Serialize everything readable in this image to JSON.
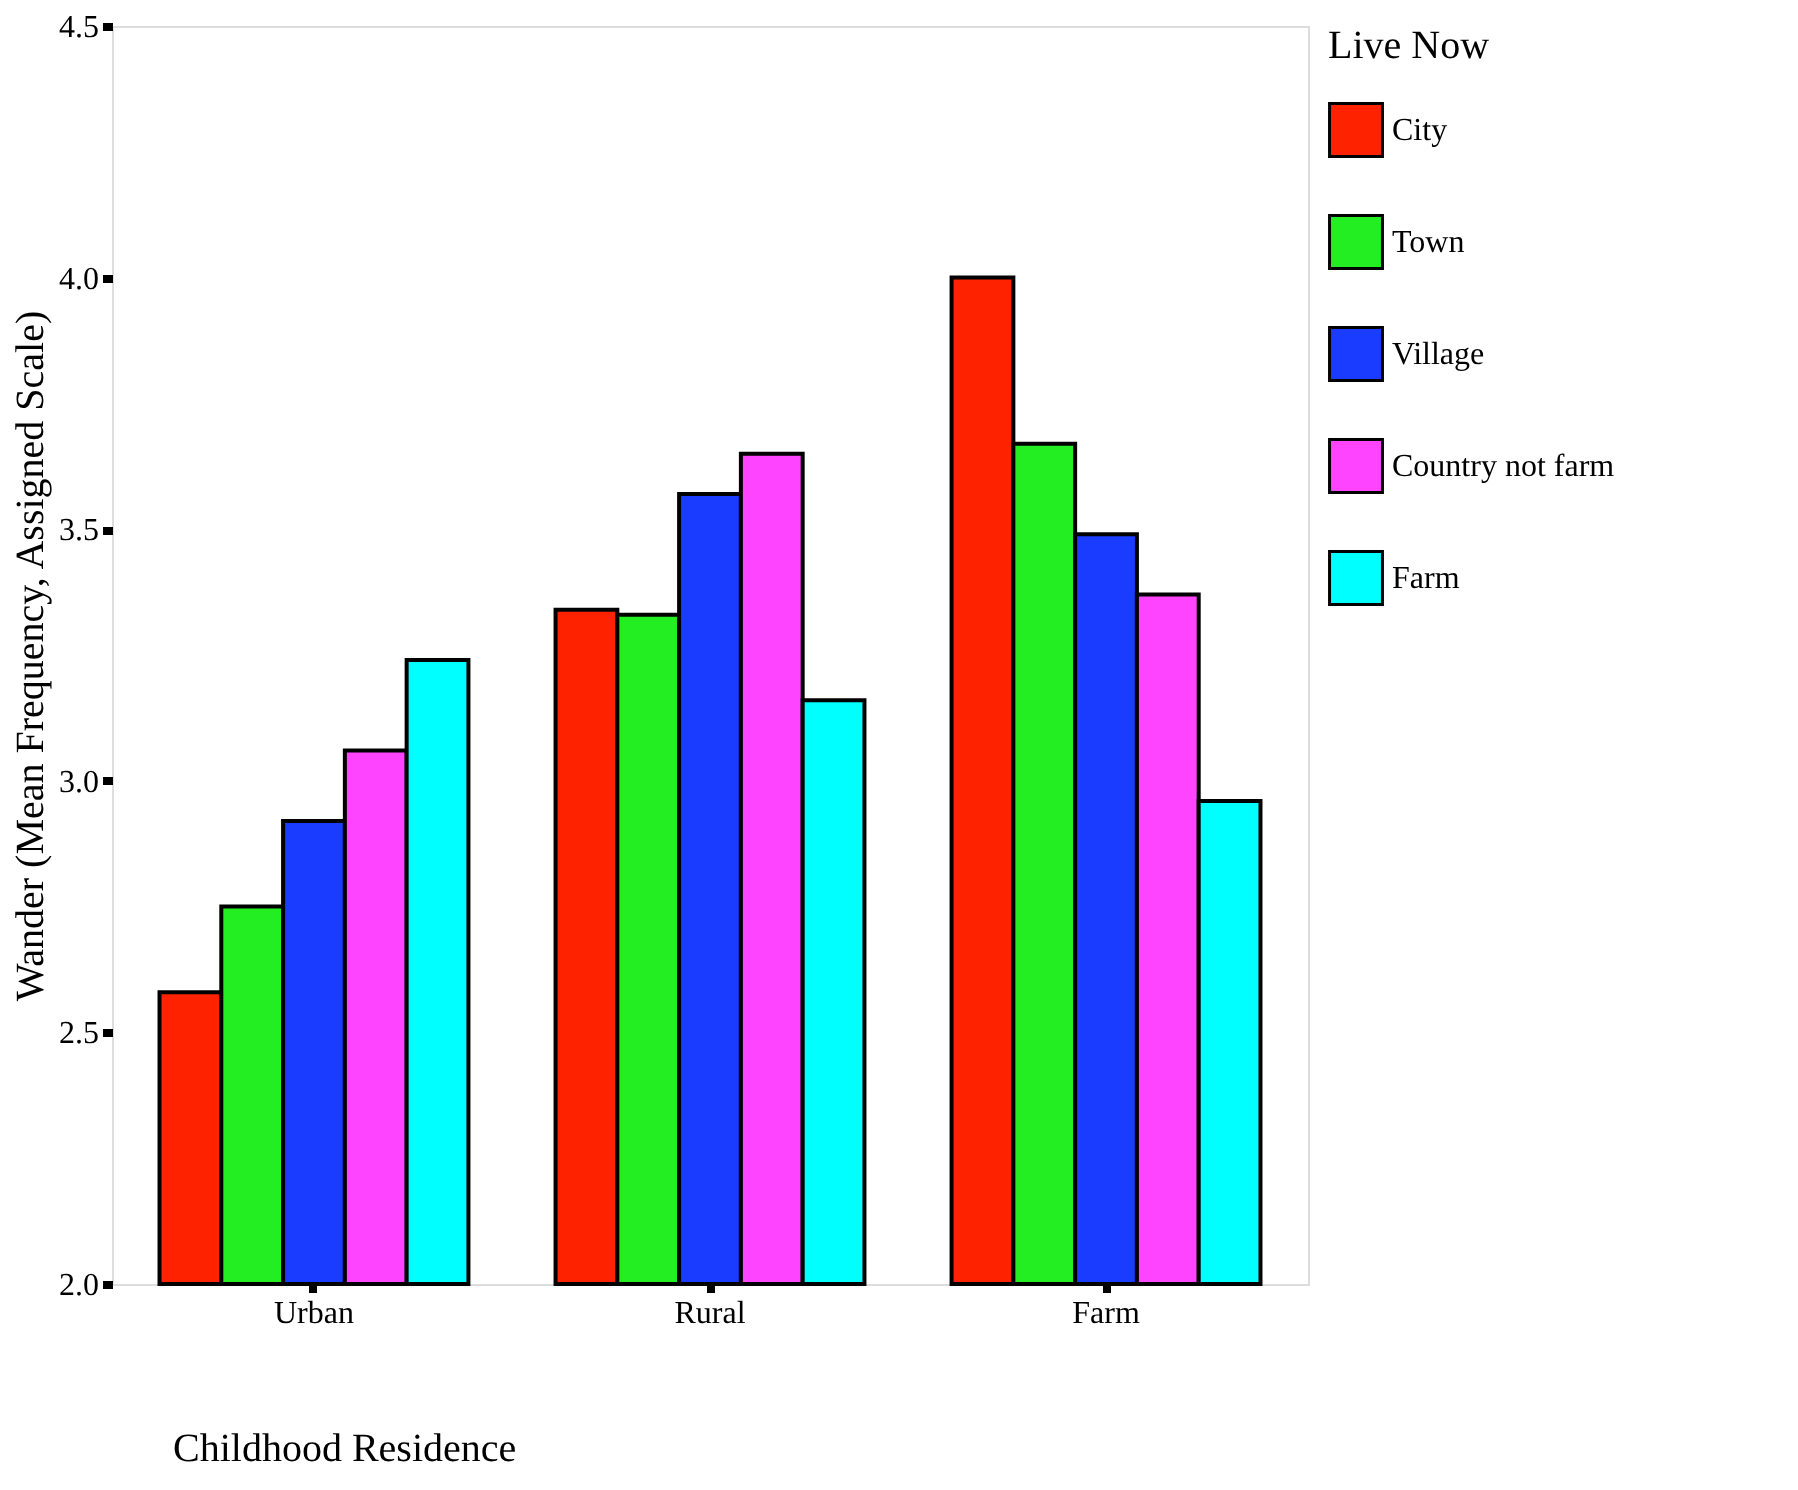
{
  "chart_data": {
    "type": "bar",
    "xlabel": "Childhood Residence",
    "ylabel": "Wander (Mean Frequency, Assigned Scale)",
    "legend_title": "Live Now",
    "categories": [
      "Urban",
      "Rural",
      "Farm"
    ],
    "series": [
      {
        "name": "City",
        "color": "#ff2200",
        "values": [
          2.58,
          3.34,
          4.0
        ]
      },
      {
        "name": "Town",
        "color": "#22ee22",
        "values": [
          2.75,
          3.33,
          3.67
        ]
      },
      {
        "name": "Village",
        "color": "#1a3cff",
        "values": [
          2.92,
          3.57,
          3.49
        ]
      },
      {
        "name": "Country not farm",
        "color": "#ff44ff",
        "values": [
          3.06,
          3.65,
          3.37
        ]
      },
      {
        "name": "Farm",
        "color": "#00ffff",
        "values": [
          3.24,
          3.16,
          2.96
        ]
      }
    ],
    "ylim": [
      2.0,
      4.5
    ],
    "yticks": [
      {
        "value": 2.0,
        "label": "2.0"
      },
      {
        "value": 2.5,
        "label": "2.5"
      },
      {
        "value": 3.0,
        "label": "3.0"
      },
      {
        "value": 3.5,
        "label": "3.5"
      },
      {
        "value": 4.0,
        "label": "4.0"
      },
      {
        "value": 4.5,
        "label": "4.5"
      }
    ],
    "grid": false,
    "legend": "right"
  }
}
